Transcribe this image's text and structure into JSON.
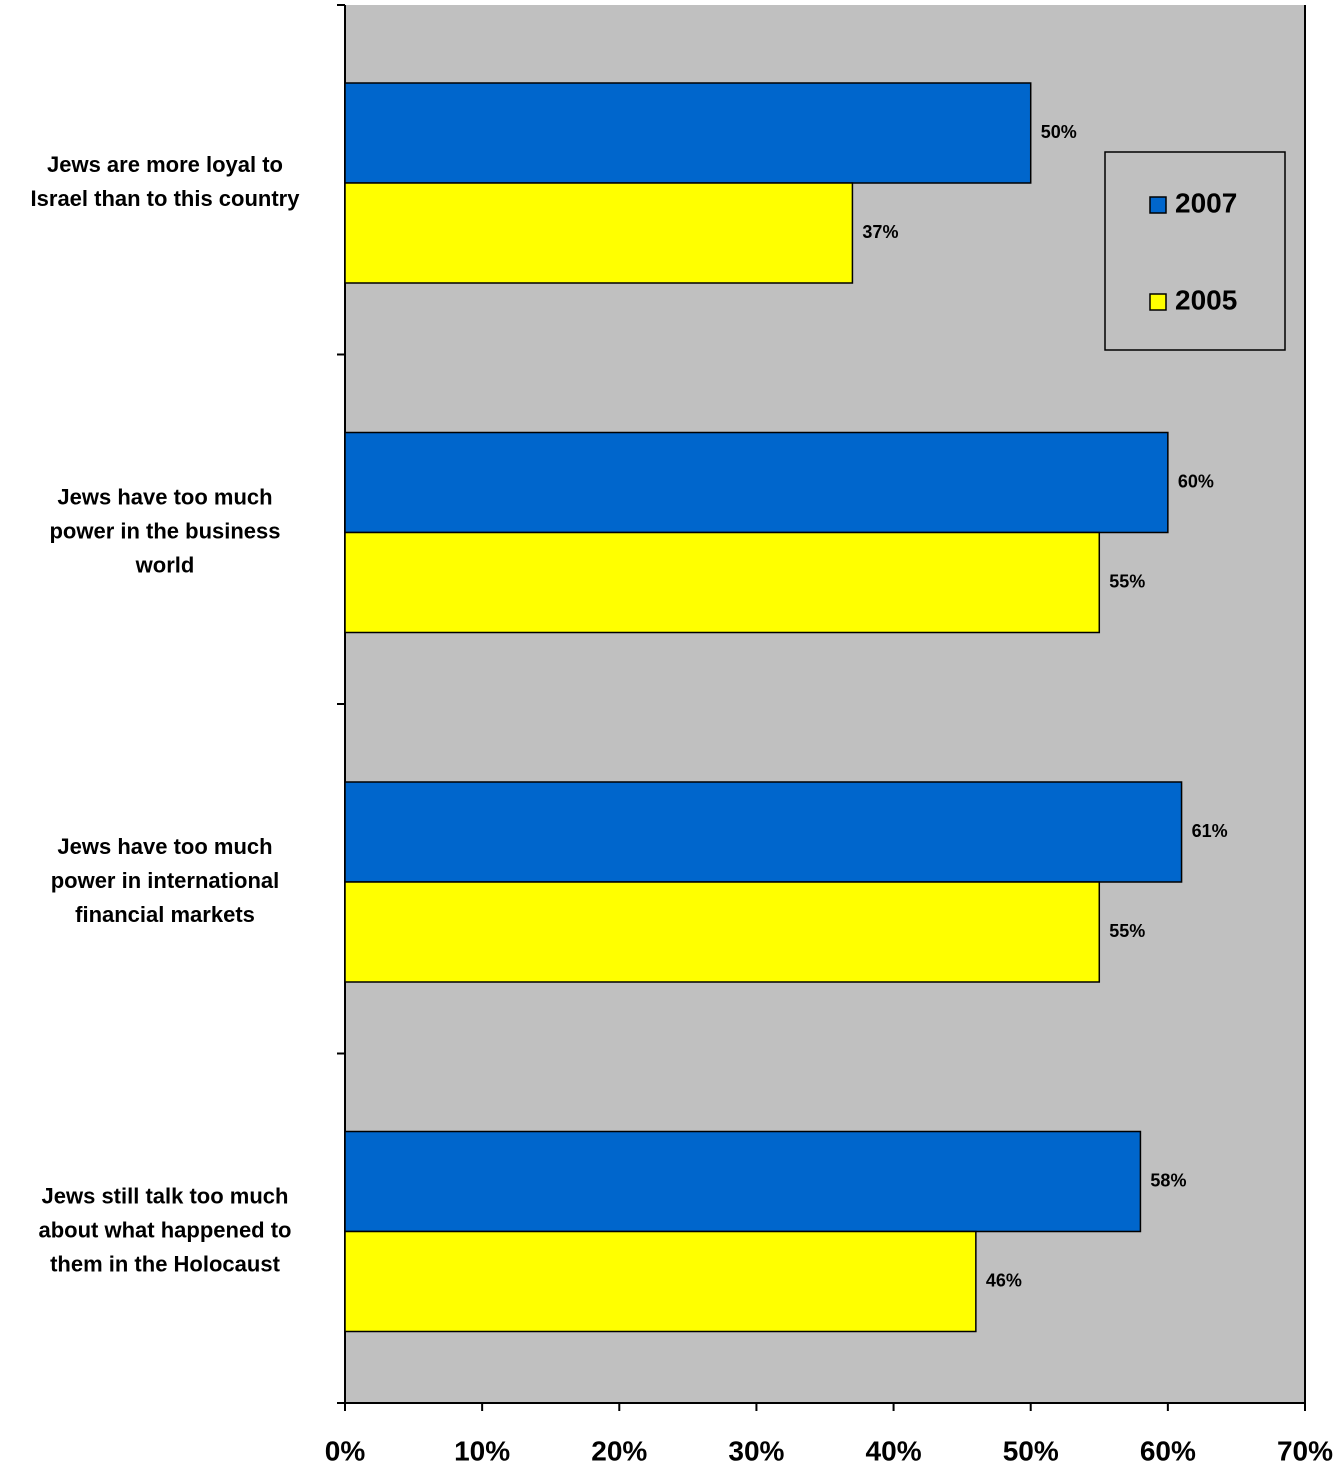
{
  "chart_data": {
    "type": "hbar",
    "categories": [
      [
        "Jews are more loyal to",
        "Israel than to this country"
      ],
      [
        "Jews have too much",
        "power in the business",
        "world"
      ],
      [
        "Jews have too much",
        "power in international",
        "financial markets"
      ],
      [
        "Jews still talk too much",
        "about what happened to",
        "them in the Holocaust"
      ]
    ],
    "series": [
      {
        "name": "2007",
        "color": "#0066cc",
        "values": [
          50,
          60,
          61,
          58
        ],
        "value_labels": [
          "50%",
          "60%",
          "61%",
          "58%"
        ]
      },
      {
        "name": "2005",
        "color": "#ffff00",
        "values": [
          37,
          55,
          55,
          46
        ],
        "value_labels": [
          "37%",
          "55%",
          "55%",
          "46%"
        ]
      }
    ],
    "xlim": [
      0,
      70
    ],
    "xticks": [
      {
        "value": 0,
        "label": "0%"
      },
      {
        "value": 10,
        "label": "10%"
      },
      {
        "value": 20,
        "label": "20%"
      },
      {
        "value": 30,
        "label": "30%"
      },
      {
        "value": 40,
        "label": "40%"
      },
      {
        "value": 50,
        "label": "50%"
      },
      {
        "value": 60,
        "label": "60%"
      },
      {
        "value": 70,
        "label": "70%"
      }
    ],
    "legend": "upper right",
    "background": "#c0c0c0"
  }
}
